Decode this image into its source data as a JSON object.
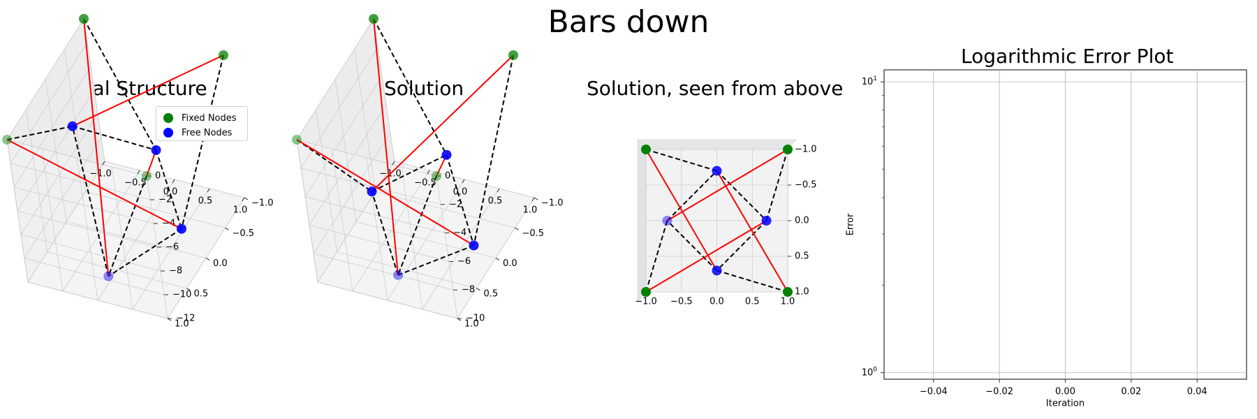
{
  "figure_title": "Bars down",
  "colors": {
    "fixed_node": "#008000",
    "free_node": "#0000ff",
    "bar": "#ff0000",
    "cable": "#000000",
    "pane": "#f2f2f2",
    "grid": "#cccccc"
  },
  "chart_data": [
    {
      "type": "scatter",
      "subtype": "3d-network",
      "title": "Initial Structure",
      "xlim": [
        -1.0,
        1.0
      ],
      "ylim": [
        -1.0,
        1.0
      ],
      "zlim": [
        -12,
        0
      ],
      "x_ticks": [
        "−1.0",
        "−0.5",
        "0.0",
        "0.5",
        "1.0"
      ],
      "y_ticks": [
        "1.0",
        "0.5",
        "0.0",
        "−0.5",
        "−1.0"
      ],
      "z_ticks": [
        "0",
        "−2",
        "−4",
        "−6",
        "−8",
        "−10",
        "−12"
      ],
      "legend": {
        "position": "top-right",
        "entries": [
          {
            "label": "Fixed Nodes",
            "color": "#008000"
          },
          {
            "label": "Free Nodes",
            "color": "#0000ff"
          }
        ]
      },
      "fixed_nodes": [
        {
          "x": -1.0,
          "y": -1.0,
          "z": 0
        },
        {
          "x": 1.0,
          "y": -1.0,
          "z": 0
        },
        {
          "x": -1.0,
          "y": 1.0,
          "z": 0
        },
        {
          "x": 1.0,
          "y": 1.0,
          "z": 0
        }
      ],
      "free_nodes": [
        {
          "x": -0.7,
          "y": 0.0,
          "z": -3.5
        },
        {
          "x": 0.0,
          "y": -0.7,
          "z": -8.0
        },
        {
          "x": 0.7,
          "y": 0.0,
          "z": -10.0
        },
        {
          "x": 0.0,
          "y": 0.7,
          "z": -11.5
        }
      ]
    },
    {
      "type": "scatter",
      "subtype": "3d-network",
      "title": "Solution",
      "xlim": [
        -1.0,
        1.0
      ],
      "ylim": [
        -1.0,
        1.0
      ],
      "zlim": [
        -10,
        0
      ],
      "x_ticks": [
        "−1.0",
        "−0.5",
        "0.0",
        "0.5",
        "1.0"
      ],
      "y_ticks": [
        "1.0",
        "0.5",
        "0.0",
        "−0.5",
        "−1.0"
      ],
      "z_ticks": [
        "0",
        "−2",
        "−4",
        "−6",
        "−8",
        "−10"
      ],
      "fixed_nodes": [
        {
          "x": -1.0,
          "y": -1.0,
          "z": 0
        },
        {
          "x": 1.0,
          "y": -1.0,
          "z": 0
        },
        {
          "x": -1.0,
          "y": 1.0,
          "z": 0
        },
        {
          "x": 1.0,
          "y": 1.0,
          "z": 0
        }
      ],
      "free_nodes": [
        {
          "x": -0.7,
          "y": 0.0,
          "z": -7.5
        },
        {
          "x": 0.0,
          "y": -0.7,
          "z": -7.0
        },
        {
          "x": 0.7,
          "y": 0.0,
          "z": -9.5
        },
        {
          "x": 0.0,
          "y": 0.7,
          "z": -9.5
        }
      ]
    },
    {
      "type": "scatter",
      "subtype": "3d-network-top-view",
      "title": "Solution, seen from above",
      "xlim": [
        -1.0,
        1.0
      ],
      "ylim": [
        -1.0,
        1.0
      ],
      "x_ticks": [
        "−1.0",
        "−0.5",
        "0.0",
        "0.5",
        "1.0"
      ],
      "y_ticks": [
        "−1.0",
        "−0.5",
        "0.0",
        "0.5",
        "1.0"
      ],
      "fixed_nodes": [
        {
          "x": -1.0,
          "y": -1.0
        },
        {
          "x": 1.0,
          "y": -1.0
        },
        {
          "x": -1.0,
          "y": 1.0
        },
        {
          "x": 1.0,
          "y": 1.0
        }
      ],
      "free_nodes": [
        {
          "x": -0.7,
          "y": 0.0
        },
        {
          "x": 0.0,
          "y": -0.7
        },
        {
          "x": 0.7,
          "y": 0.0
        },
        {
          "x": 0.0,
          "y": 0.7
        }
      ]
    },
    {
      "type": "line",
      "title": "Logarithmic Error Plot",
      "xlabel": "Iteration",
      "ylabel": "Error",
      "yscale": "log",
      "xlim": [
        -0.055,
        0.055
      ],
      "ylim": [
        0.95,
        11
      ],
      "x_ticks": [
        "−0.04",
        "−0.02",
        "0.00",
        "0.02",
        "0.04"
      ],
      "x_tick_values": [
        -0.04,
        -0.02,
        0.0,
        0.02,
        0.04
      ],
      "y_ticks": [
        "10",
        "10"
      ],
      "y_tick_exponents": [
        "0",
        "1"
      ],
      "grid": true,
      "series": []
    }
  ]
}
